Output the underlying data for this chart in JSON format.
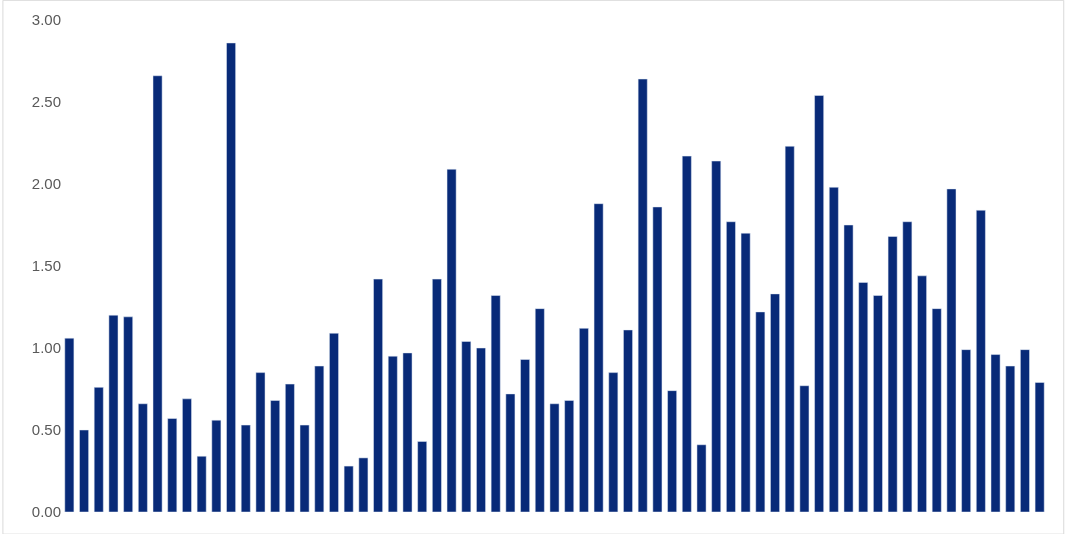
{
  "chart_data": {
    "type": "bar",
    "categories": [
      null,
      null,
      null,
      null,
      null,
      null,
      null,
      null,
      null,
      null,
      null,
      null,
      null,
      null,
      null,
      null,
      null,
      null,
      null,
      null,
      null,
      null,
      null,
      null,
      null,
      null,
      null,
      null,
      null,
      null,
      null,
      null,
      null,
      null,
      null,
      null,
      null,
      null,
      null,
      null,
      null,
      null,
      null,
      null,
      null,
      null,
      null,
      null,
      null,
      null,
      null,
      null,
      null,
      null,
      null,
      null,
      null,
      null,
      null,
      null,
      null,
      null,
      null,
      null,
      null,
      null,
      null
    ],
    "values": [
      1.06,
      0.5,
      0.76,
      1.2,
      1.19,
      0.66,
      2.66,
      0.57,
      0.69,
      0.34,
      0.56,
      2.86,
      0.53,
      0.85,
      0.68,
      0.78,
      0.53,
      0.89,
      1.09,
      0.28,
      0.33,
      1.42,
      0.95,
      0.97,
      0.43,
      1.42,
      2.09,
      1.04,
      1.0,
      1.32,
      0.72,
      0.93,
      1.24,
      0.66,
      0.68,
      1.12,
      1.88,
      0.85,
      1.11,
      2.64,
      1.86,
      0.74,
      2.17,
      0.41,
      2.14,
      1.77,
      1.7,
      1.22,
      1.33,
      2.23,
      0.77,
      2.54,
      1.98,
      1.75,
      1.4,
      1.32,
      1.68,
      1.77,
      1.44,
      1.24,
      1.97,
      0.99,
      1.84,
      0.96,
      0.89,
      0.99,
      0.79
    ],
    "color": "#082a78",
    "ylim": [
      0,
      3
    ],
    "yticks": [
      {
        "value": 0,
        "label": "0.00"
      },
      {
        "value": 0.5,
        "label": "0.50"
      },
      {
        "value": 1,
        "label": "1.00"
      },
      {
        "value": 1.5,
        "label": "1.50"
      },
      {
        "value": 2,
        "label": "2.00"
      },
      {
        "value": 2.5,
        "label": "2.50"
      },
      {
        "value": 3,
        "label": "3.00"
      }
    ],
    "grid": false,
    "legend": false
  }
}
